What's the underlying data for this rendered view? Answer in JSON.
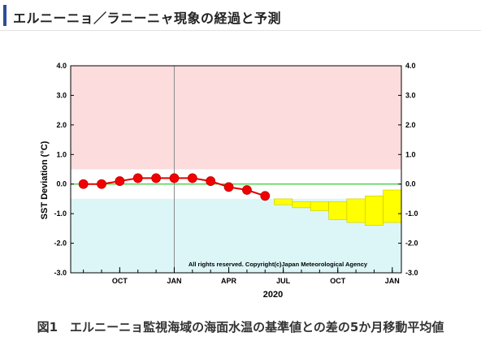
{
  "header": {
    "title": "エルニーニョ／ラニーニャ現象の経過と予測"
  },
  "caption": "図1　エルニーニョ監視海域の海面水温の基準値との差の5か月移動平均値",
  "colors": {
    "header_accent": "#2d4f96",
    "el_nino_band": "#fcdcdc",
    "la_nina_band": "#dcf6f8",
    "observed_line": "#e00000",
    "observed_marker": "#f20000",
    "forecast_box": "#ffff00",
    "zero_line": "#00c000"
  },
  "chart_data": {
    "type": "line",
    "title": "",
    "xlabel": "2020",
    "ylabel": "SST Deviation (°C)",
    "ylim": [
      -3.0,
      4.0
    ],
    "y_ticks": [
      "4.0",
      "3.0",
      "2.0",
      "1.0",
      "0.0",
      "-1.0",
      "-2.0",
      "-3.0"
    ],
    "x_tick_labels": [
      "OCT",
      "JAN",
      "APR",
      "JUL",
      "OCT",
      "JAN"
    ],
    "x_tick_months": [
      9,
      12,
      15,
      18,
      21,
      24
    ],
    "x_range_months": [
      6.3,
      24.5
    ],
    "year_divider_month": 12,
    "thresholds": {
      "el_nino": 0.5,
      "la_nina": -0.5
    },
    "grid": false,
    "copyright": "All rights reserved. Copyright(c)Japan Meteorological Agency",
    "observed": {
      "months": [
        7,
        8,
        9,
        10,
        11,
        12,
        13,
        14,
        15,
        16,
        17
      ],
      "values": [
        0.0,
        0.0,
        0.1,
        0.2,
        0.2,
        0.2,
        0.2,
        0.1,
        -0.1,
        -0.2,
        -0.4
      ]
    },
    "forecast": {
      "months": [
        18,
        19,
        20,
        21,
        22,
        23,
        24
      ],
      "lower": [
        -0.7,
        -0.8,
        -0.9,
        -1.2,
        -1.3,
        -1.4,
        -1.3
      ],
      "upper": [
        -0.5,
        -0.6,
        -0.6,
        -0.6,
        -0.5,
        -0.4,
        -0.2
      ]
    }
  }
}
